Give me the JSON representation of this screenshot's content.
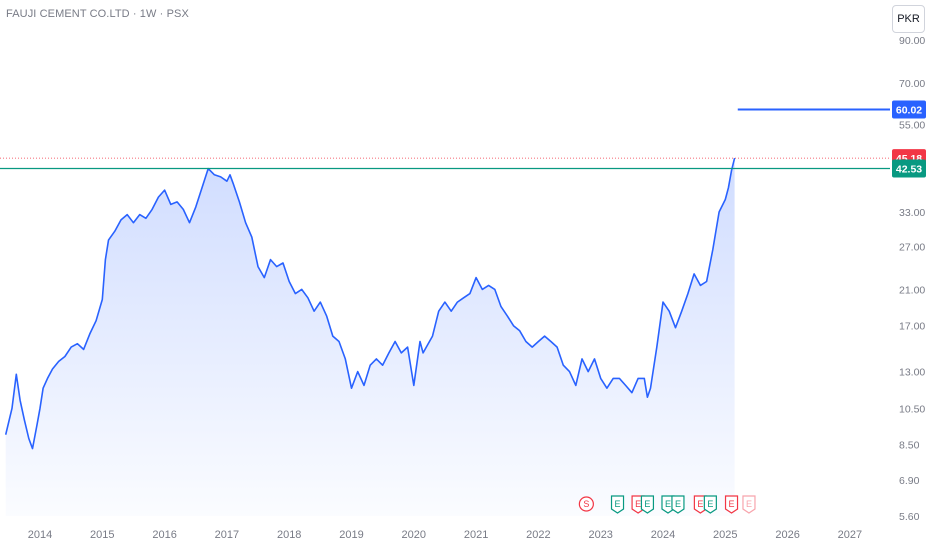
{
  "header": {
    "title": "FAUJI CEMENT CO.LTD · 1W · PSX",
    "currency": "PKR"
  },
  "colors": {
    "line": "#2962ff",
    "support": "#089981",
    "target": "#2962ff",
    "price": "#f23645"
  },
  "chart_data": {
    "type": "area",
    "yscale": "log",
    "ylim": [
      5.6,
      90
    ],
    "yticks": [
      "5.60",
      "6.90",
      "8.50",
      "10.50",
      "13.00",
      "17.00",
      "21.00",
      "27.00",
      "33.00",
      "55.00",
      "70.00",
      "90.00"
    ],
    "xticks": [
      "2014",
      "2015",
      "2016",
      "2017",
      "2018",
      "2019",
      "2020",
      "2021",
      "2022",
      "2023",
      "2024",
      "2025",
      "2026",
      "2027"
    ],
    "price_labels": [
      {
        "label": "60.02",
        "value": 60.02,
        "color": "#2962ff",
        "kind": "target"
      },
      {
        "label": "45.18",
        "value": 45.18,
        "color": "#f23645",
        "kind": "last"
      },
      {
        "label": "42.53",
        "value": 42.53,
        "color": "#089981",
        "kind": "support"
      }
    ],
    "series": [
      {
        "t": [
          2013.45,
          2013.55,
          2013.62,
          2013.68,
          2013.75,
          2013.82,
          2013.88,
          2013.95,
          2014.0,
          2014.05,
          2014.12,
          2014.2,
          2014.3,
          2014.4,
          2014.5,
          2014.6,
          2014.7,
          2014.8,
          2014.9,
          2015.0,
          2015.05,
          2015.1,
          2015.2,
          2015.3,
          2015.4,
          2015.5,
          2015.6,
          2015.7,
          2015.8,
          2015.9,
          2016.0,
          2016.1,
          2016.2,
          2016.3,
          2016.4,
          2016.5,
          2016.6,
          2016.7,
          2016.8,
          2016.9,
          2017.0,
          2017.05,
          2017.1,
          2017.2,
          2017.3,
          2017.4,
          2017.5,
          2017.6,
          2017.7,
          2017.8,
          2017.9,
          2018.0,
          2018.1,
          2018.2,
          2018.3,
          2018.4,
          2018.5,
          2018.6,
          2018.7,
          2018.8,
          2018.9,
          2019.0,
          2019.1,
          2019.2,
          2019.3,
          2019.4,
          2019.5,
          2019.6,
          2019.7,
          2019.8,
          2019.9,
          2020.0,
          2020.1,
          2020.15,
          2020.2,
          2020.3,
          2020.4,
          2020.5,
          2020.6,
          2020.7,
          2020.8,
          2020.9,
          2021.0,
          2021.1,
          2021.2,
          2021.3,
          2021.4,
          2021.5,
          2021.6,
          2021.7,
          2021.8,
          2021.9,
          2022.0,
          2022.1,
          2022.2,
          2022.3,
          2022.4,
          2022.5,
          2022.6,
          2022.7,
          2022.8,
          2022.9,
          2023.0,
          2023.1,
          2023.2,
          2023.3,
          2023.4,
          2023.5,
          2023.6,
          2023.7,
          2023.75,
          2023.8,
          2023.9,
          2024.0,
          2024.1,
          2024.2,
          2024.3,
          2024.4,
          2024.5,
          2024.6,
          2024.7,
          2024.8,
          2024.9,
          2025.0,
          2025.05,
          2025.1,
          2025.15
        ],
        "values": [
          9.0,
          10.5,
          12.8,
          11.0,
          9.8,
          8.8,
          8.3,
          9.5,
          10.5,
          11.8,
          12.5,
          13.2,
          13.8,
          14.2,
          15.0,
          15.3,
          14.8,
          16.2,
          17.5,
          19.8,
          25.0,
          28.0,
          29.5,
          31.5,
          32.5,
          31.0,
          32.5,
          31.8,
          33.5,
          36.0,
          37.5,
          34.5,
          35.0,
          33.5,
          31.0,
          34.0,
          38.0,
          42.5,
          41.0,
          40.5,
          39.5,
          41.0,
          39.0,
          35.0,
          31.0,
          28.5,
          24.0,
          22.5,
          25.0,
          24.0,
          24.5,
          22.0,
          20.5,
          21.0,
          20.0,
          18.5,
          19.5,
          18.0,
          16.0,
          15.5,
          14.0,
          11.8,
          13.0,
          12.0,
          13.5,
          14.0,
          13.5,
          14.5,
          15.5,
          14.5,
          15.0,
          12.0,
          15.5,
          14.5,
          15.0,
          16.0,
          18.5,
          19.5,
          18.5,
          19.5,
          20.0,
          20.5,
          22.5,
          21.0,
          21.5,
          21.0,
          19.0,
          18.0,
          17.0,
          16.5,
          15.5,
          15.0,
          15.5,
          16.0,
          15.5,
          15.0,
          13.5,
          13.0,
          12.0,
          14.0,
          13.0,
          14.0,
          12.5,
          11.8,
          12.5,
          12.5,
          12.0,
          11.5,
          12.5,
          12.5,
          11.2,
          11.8,
          15.0,
          19.5,
          18.5,
          16.8,
          18.5,
          20.5,
          23.0,
          21.5,
          22.0,
          26.5,
          33.0,
          35.5,
          38.0,
          42.0,
          45.18
        ]
      }
    ],
    "events": [
      {
        "label": "S",
        "t": 2022.77,
        "color": "#f23645",
        "shape": "circle"
      },
      {
        "label": "E",
        "t": 2023.27,
        "color": "#089981",
        "shape": "flag"
      },
      {
        "label": "E",
        "t": 2023.6,
        "color": "#f23645",
        "shape": "flag"
      },
      {
        "label": "E",
        "t": 2023.75,
        "color": "#089981",
        "shape": "flag"
      },
      {
        "label": "E",
        "t": 2024.08,
        "color": "#089981",
        "shape": "flag"
      },
      {
        "label": "E",
        "t": 2024.24,
        "color": "#089981",
        "shape": "flag"
      },
      {
        "label": "E",
        "t": 2024.6,
        "color": "#f23645",
        "shape": "flag"
      },
      {
        "label": "E",
        "t": 2024.76,
        "color": "#089981",
        "shape": "flag"
      },
      {
        "label": "E",
        "t": 2025.1,
        "color": "#f23645",
        "shape": "flag"
      },
      {
        "label": "E",
        "t": 2025.38,
        "color": "#f8a4ac",
        "shape": "flag"
      }
    ]
  }
}
